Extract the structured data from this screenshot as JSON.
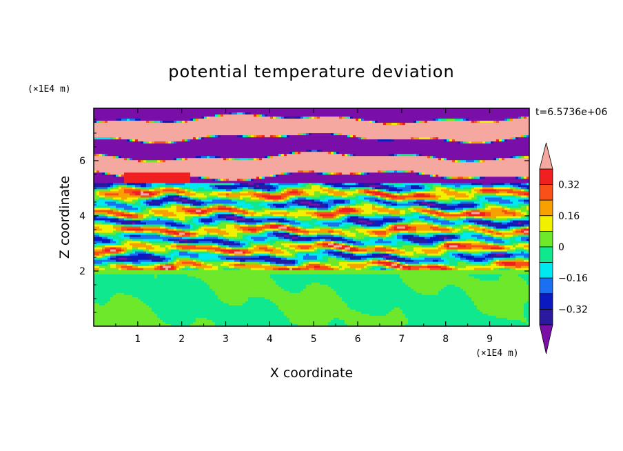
{
  "chart_data": {
    "type": "heatmap",
    "title": "potential temperature deviation",
    "xlabel": "X coordinate",
    "ylabel": "Z coordinate",
    "x_unit": "(×1E4 m)",
    "y_unit": "(×1E4 m)",
    "time_label": "t=6.5736e+06",
    "xlim": [
      0,
      9.9
    ],
    "ylim": [
      0,
      7.9
    ],
    "x_ticks": [
      1,
      2,
      3,
      4,
      5,
      6,
      7,
      8,
      9
    ],
    "y_ticks": [
      2,
      4,
      6
    ],
    "colorbar": {
      "labels": [
        {
          "value": 0.32,
          "text": "0.32"
        },
        {
          "value": 0.16,
          "text": "0.16"
        },
        {
          "value": 0,
          "text": "0"
        },
        {
          "value": -0.16,
          "text": "−0.16"
        },
        {
          "value": -0.32,
          "text": "−0.32"
        }
      ],
      "levels": [
        -0.4,
        -0.32,
        -0.24,
        -0.16,
        -0.08,
        0,
        0.08,
        0.16,
        0.24,
        0.32,
        0.4
      ],
      "colors": [
        "#7a0fa8",
        "#2a1aa0",
        "#0a1ac0",
        "#1a70f0",
        "#00e8f0",
        "#10e890",
        "#6ee82a",
        "#f0f000",
        "#f8a000",
        "#f85018",
        "#f02020",
        "#f5a8a0"
      ],
      "extend": "both"
    },
    "bands": [
      {
        "z_range": [
          7.4,
          7.9
        ],
        "dominant": "#f5a8a0",
        "note": "pink/purple alternating"
      },
      {
        "z_range": [
          5.2,
          7.4
        ],
        "dominant": "purple/pink layers"
      },
      {
        "z_range": [
          2.0,
          5.2
        ],
        "dominant": "mixed turbulent layers"
      },
      {
        "z_range": [
          0.0,
          2.0
        ],
        "dominant": "green"
      }
    ]
  }
}
